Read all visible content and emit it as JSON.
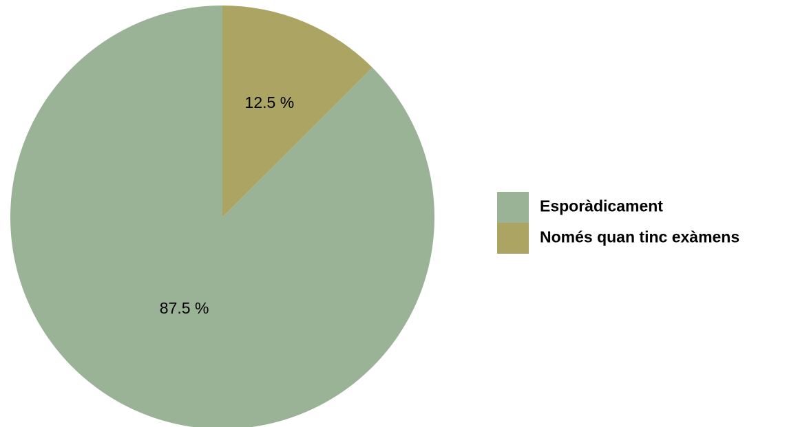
{
  "chart_data": {
    "type": "pie",
    "slices": [
      {
        "label": "Esporàdicament",
        "value": 87.5,
        "value_label": "87.5 %",
        "color": "#9ab396"
      },
      {
        "label": "Només quan tinc exàmens",
        "value": 12.5,
        "value_label": "12.5 %",
        "color": "#aba462"
      }
    ],
    "start_angle": "12 o'clock",
    "direction": "clockwise, smaller slice first",
    "legend": {
      "position": "right"
    }
  }
}
